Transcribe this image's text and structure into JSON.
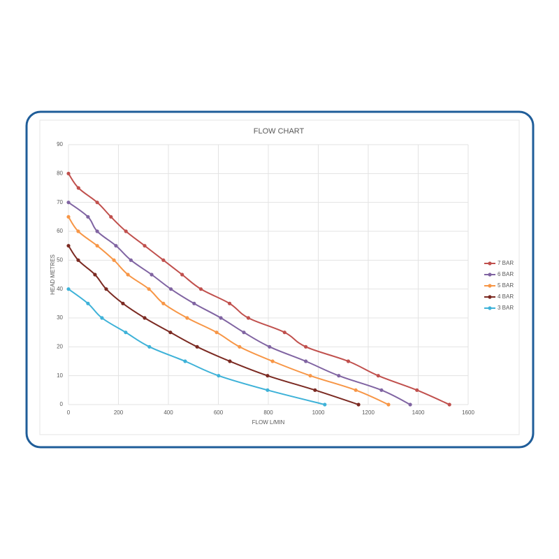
{
  "chart_data": {
    "type": "line",
    "title": "FLOW CHART",
    "x_label": "FLOW L/MIN",
    "y_label": "HEAD METRES",
    "xlim": [
      0,
      1600
    ],
    "xticks": [
      0,
      200,
      400,
      600,
      800,
      1000,
      1200,
      1400,
      1600
    ],
    "ylim": [
      0,
      90
    ],
    "yticks": [
      0,
      10,
      20,
      30,
      40,
      50,
      60,
      70,
      80,
      90
    ],
    "grid": true,
    "legend": "right",
    "series": [
      {
        "name": "7 BAR",
        "color": "#c0504d",
        "x": [
          0,
          40,
          115,
          170,
          230,
          305,
          380,
          455,
          530,
          645,
          720,
          865,
          950,
          1120,
          1240,
          1395,
          1525
        ],
        "values": [
          80,
          75,
          70,
          65,
          60,
          55,
          50,
          45,
          40,
          35,
          30,
          25,
          20,
          15,
          10,
          5,
          0
        ]
      },
      {
        "name": "6 BAR",
        "color": "#8064a2",
        "x": [
          0,
          78,
          115,
          190,
          250,
          333,
          410,
          503,
          610,
          702,
          805,
          950,
          1082,
          1253,
          1368
        ],
        "values": [
          70,
          65,
          60,
          55,
          50,
          45,
          40,
          35,
          30,
          25,
          20,
          15,
          10,
          5,
          0
        ]
      },
      {
        "name": "5 BAR",
        "color": "#f79646",
        "x": [
          0,
          39,
          115,
          182,
          238,
          322,
          380,
          475,
          593,
          685,
          817,
          968,
          1150,
          1281
        ],
        "values": [
          65,
          60,
          55,
          50,
          45,
          40,
          35,
          30,
          25,
          20,
          15,
          10,
          5,
          0
        ]
      },
      {
        "name": "4 BAR",
        "color": "#7b2a22",
        "x": [
          0,
          39,
          106,
          151,
          218,
          305,
          408,
          515,
          646,
          797,
          987,
          1161
        ],
        "values": [
          55,
          50,
          45,
          40,
          35,
          30,
          25,
          20,
          15,
          10,
          5,
          0
        ]
      },
      {
        "name": "3 BAR",
        "color": "#3eb2d8",
        "x": [
          0,
          78,
          134,
          229,
          324,
          467,
          601,
          797,
          1026
        ],
        "values": [
          40,
          35,
          30,
          25,
          20,
          15,
          10,
          5,
          0
        ]
      }
    ]
  }
}
